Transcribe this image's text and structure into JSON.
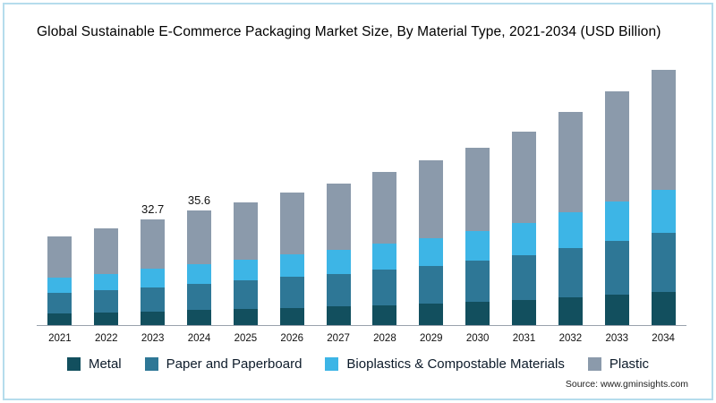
{
  "title": "Global Sustainable E-Commerce Packaging Market Size, By Material Type, 2021-2034 (USD Billion)",
  "source": "Source: www.gminsights.com",
  "colors": {
    "metal": "#124f5e",
    "paper": "#2e7796",
    "bioplastics": "#3db5e6",
    "plastic": "#8b9aab",
    "card_border": "#b5dcec",
    "axis_line": "#9aa3ad"
  },
  "chart_data": {
    "type": "bar",
    "stacked": true,
    "title": "Global Sustainable E-Commerce Packaging Market Size, By Material Type, 2021-2034 (USD Billion)",
    "xlabel": "",
    "ylabel": "USD Billion",
    "ylim": [
      0,
      80
    ],
    "grid": false,
    "legend_position": "bottom",
    "categories": [
      "2021",
      "2022",
      "2023",
      "2024",
      "2025",
      "2026",
      "2027",
      "2028",
      "2029",
      "2030",
      "2031",
      "2032",
      "2033",
      "2034"
    ],
    "series": [
      {
        "name": "Metal",
        "color_key": "metal",
        "values": [
          3.6,
          3.9,
          4.3,
          4.6,
          5.0,
          5.4,
          5.7,
          6.2,
          6.6,
          7.2,
          7.8,
          8.6,
          9.4,
          10.3
        ]
      },
      {
        "name": "Paper and Paperboard",
        "color_key": "paper",
        "values": [
          6.3,
          6.9,
          7.5,
          8.2,
          8.8,
          9.5,
          10.1,
          10.9,
          11.7,
          12.7,
          13.8,
          15.2,
          16.7,
          18.2
        ]
      },
      {
        "name": "Bioplastics & Compostable Materials",
        "color_key": "bioplastics",
        "values": [
          4.7,
          5.1,
          5.6,
          6.1,
          6.5,
          7.0,
          7.5,
          8.1,
          8.7,
          9.4,
          10.2,
          11.2,
          12.3,
          13.5
        ]
      },
      {
        "name": "Plastic",
        "color_key": "plastic",
        "values": [
          13.0,
          14.2,
          15.3,
          16.7,
          17.9,
          19.3,
          20.6,
          22.4,
          24.0,
          25.7,
          28.3,
          31.1,
          34.2,
          37.2
        ]
      }
    ],
    "totals": [
      27.6,
      30.1,
      32.7,
      35.6,
      38.2,
      41.2,
      43.9,
      47.6,
      51.0,
      55.0,
      60.1,
      66.1,
      72.6,
      79.2
    ],
    "bar_labels": [
      null,
      null,
      "32.7",
      "35.6",
      null,
      null,
      null,
      null,
      null,
      null,
      null,
      null,
      null,
      null
    ]
  }
}
